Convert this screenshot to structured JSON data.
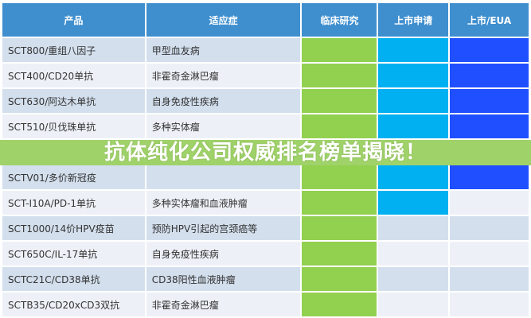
{
  "headers": [
    "产品",
    "适应症",
    "临床研究",
    "上市申请",
    "上市/EUA"
  ],
  "colors": {
    "clinical": "#92d050",
    "application": "#00b0f0",
    "approved": "#1f4fff",
    "header": "#3f8fcf"
  },
  "rows": [
    {
      "product": "SCT800/重组八因子",
      "indication": "甲型血友病",
      "stages": [
        1,
        1,
        1
      ]
    },
    {
      "product": "SCT400/CD20单抗",
      "indication": "非霍奇金淋巴瘤",
      "stages": [
        1,
        1,
        1
      ]
    },
    {
      "product": "SCT630/阿达木单抗",
      "indication": "自身免疫性疾病",
      "stages": [
        1,
        1,
        1
      ]
    },
    {
      "product": "SCT510/贝伐珠单抗",
      "indication": "多种实体瘤",
      "stages": [
        1,
        1,
        1
      ]
    },
    {
      "product": "SCTV01/多价新冠疫",
      "indication": "",
      "stages": [
        1,
        1,
        1
      ]
    },
    {
      "product": "SCT-I10A/PD-1单抗",
      "indication": "多种实体瘤和血液肿瘤",
      "stages": [
        1,
        1,
        0
      ]
    },
    {
      "product": "SCT1000/14价HPV疫苗",
      "indication": "预防HPV引起的宫颈癌等",
      "stages": [
        1,
        0,
        0
      ]
    },
    {
      "product": "SCT650C/IL-17单抗",
      "indication": "自身免疫性疾病",
      "stages": [
        1,
        0,
        0
      ]
    },
    {
      "product": "SCTC21C/CD38单抗",
      "indication": "CD38阳性血液肿瘤",
      "stages": [
        1,
        0,
        0
      ]
    },
    {
      "product": "SCTB35/CD20xCD3双抗",
      "indication": "非霍奇金淋巴瘤",
      "stages": [
        1,
        0,
        0
      ]
    }
  ],
  "banner": "抗体纯化公司权威排名榜单揭晓！"
}
